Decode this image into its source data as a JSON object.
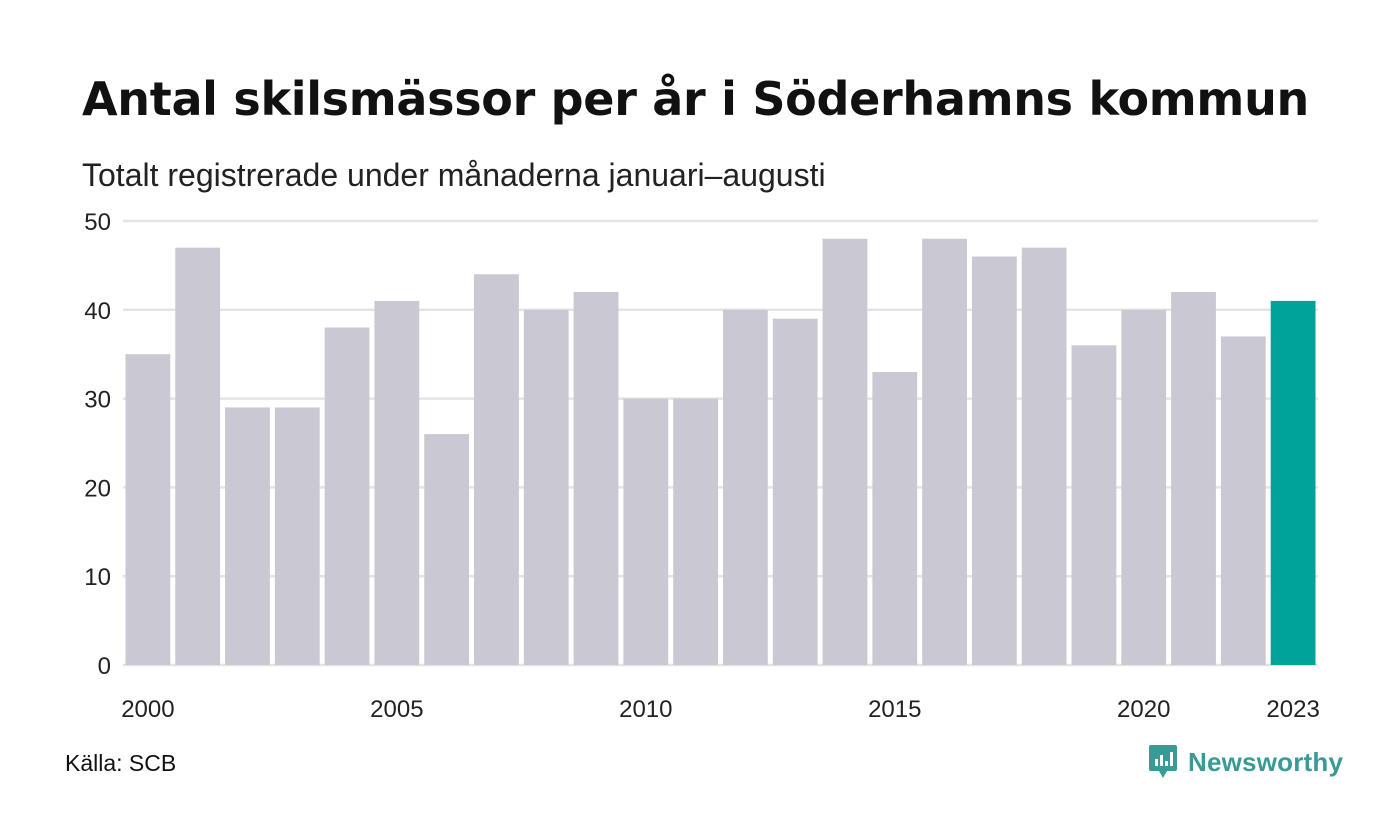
{
  "header": {
    "title": "Antal skilsmässor per år i Söderhamns kommun",
    "subtitle": "Totalt registrerade under månaderna januari–augusti"
  },
  "footer": {
    "source": "Källa: SCB",
    "brand": "Newsworthy",
    "brand_icon": "bar-chart-speech-bubble-icon"
  },
  "colors": {
    "bar": "#c9c8d3",
    "highlight": "#00a398",
    "grid": "#e4e4e4",
    "brand": "#3a9a95"
  },
  "chart_data": {
    "type": "bar",
    "categories": [
      "2000",
      "2001",
      "2002",
      "2003",
      "2004",
      "2005",
      "2006",
      "2007",
      "2008",
      "2009",
      "2010",
      "2011",
      "2012",
      "2013",
      "2014",
      "2015",
      "2016",
      "2017",
      "2018",
      "2019",
      "2020",
      "2021",
      "2022",
      "2023"
    ],
    "values": [
      35,
      47,
      29,
      29,
      38,
      41,
      26,
      44,
      40,
      42,
      30,
      30,
      40,
      39,
      48,
      33,
      48,
      46,
      47,
      36,
      40,
      42,
      37,
      41
    ],
    "highlighted_category": "2023",
    "xticks": [
      "2000",
      "2005",
      "2010",
      "2015",
      "2020",
      "2023"
    ],
    "yticks": [
      0,
      10,
      20,
      30,
      40,
      50
    ],
    "ylim": [
      0,
      50
    ],
    "xlabel": "",
    "ylabel": "",
    "grid": "horizontal",
    "legend": "none"
  }
}
